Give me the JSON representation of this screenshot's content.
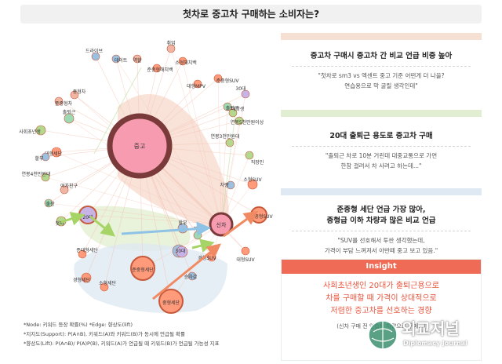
{
  "title": "첫차로 중고차 구매하는 소비자는?",
  "network": {
    "hub_nodes": [
      {
        "label": "중고",
        "color": "#f79bb0"
      },
      {
        "label": "신차",
        "color": "#f79bb0"
      }
    ],
    "nodes": [
      {
        "label": "취업",
        "color": "#f1b5a3"
      },
      {
        "label": "드라이브",
        "color": "#9dbfe0"
      },
      {
        "label": "데이트",
        "color": "#9dbfe0"
      },
      {
        "label": "역할",
        "color": "#f1b5a3"
      },
      {
        "label": "소형해치백",
        "color": "#ff9a7a"
      },
      {
        "label": "준중형해치백",
        "color": "#ff9a7a"
      },
      {
        "label": "준중형SUV",
        "color": "#ff9a7a"
      },
      {
        "label": "대형MPV",
        "color": "#ff9a7a"
      },
      {
        "label": "중형차",
        "color": "#f1b5a3"
      },
      {
        "label": "준중형차",
        "color": "#f1b5a3"
      },
      {
        "label": "출퇴근",
        "color": "#9dd9b2"
      },
      {
        "label": "사회초년생",
        "color": "#b4d88e"
      },
      {
        "label": "대형세단",
        "color": "#ff9a7a"
      },
      {
        "label": "할부",
        "color": "#9dbfe0"
      },
      {
        "label": "연봉4천만원대",
        "color": "#b4d88e"
      },
      {
        "label": "여자친구",
        "color": "#f1b5a3"
      },
      {
        "label": "출장",
        "color": "#9dd9b2"
      },
      {
        "label": "첫차",
        "color": "#b4d88e"
      },
      {
        "label": "20대",
        "color": "#c7b3e6"
      },
      {
        "label": "경형세단",
        "color": "#ff9a7a"
      },
      {
        "label": "준중형세단",
        "color": "#ff9a7a"
      },
      {
        "label": "소형세단",
        "color": "#ff9a7a"
      },
      {
        "label": "중형세단",
        "color": "#ff9a7a"
      },
      {
        "label": "준대형세단",
        "color": "#ff9a7a"
      },
      {
        "label": "출퇴근",
        "color": "#9dd9b2"
      },
      {
        "label": "할부",
        "color": "#9dbfe0"
      },
      {
        "label": "회사",
        "color": "#9dbfe0"
      },
      {
        "label": "30대",
        "color": "#c7b3e6"
      },
      {
        "label": "경형SUV",
        "color": "#ff9a7a"
      },
      {
        "label": "승차감",
        "color": "#9dbfe0"
      },
      {
        "label": "대형SUV",
        "color": "#ff9a7a"
      },
      {
        "label": "중형SUV",
        "color": "#ff9a7a"
      },
      {
        "label": "소형SUV",
        "color": "#ff9a7a"
      },
      {
        "label": "차량",
        "color": "#9dbfe0"
      },
      {
        "label": "직장인",
        "color": "#b4d88e"
      },
      {
        "label": "연봉3천만원대",
        "color": "#b4d88e"
      },
      {
        "label": "연봉5천만원이상",
        "color": "#b4d88e"
      },
      {
        "label": "대학생",
        "color": "#b4d88e"
      },
      {
        "label": "30대",
        "color": "#c7b3e6"
      },
      {
        "label": "차로",
        "color": "#9dd9b2"
      }
    ]
  },
  "notes": [
    "*Node: 키워드 등장 확률(%) *Edge: 향상도(lift)",
    "*지지도(Support): P(A∩B), 키워드(A)와 키워드(B)가 동시에 언급될 확률",
    "*향상도(Lift): P(A∩B)/ P(A)P(B), 키워드(A)가 언급될 때 키워드(B)가 언급될 가능성 지표"
  ],
  "cards": [
    {
      "title": "중고차 구매시 중고차 간 비교 언급 비중 높아",
      "quote": "\"첫차로 sm3 vs 엑센트 중고 기준 어떤게 더 나을?\n연습용으로 막 굴릴 생각인데\"",
      "accent": "#f6dfd3"
    },
    {
      "title": "20대 출퇴근 용도로 중고차 구매",
      "quote": "\"출퇴근 차로 10분 거린데 대중교통으로 가면\n한참 걸려서 차 사려고 하는데...\"",
      "accent": "#e2eed1"
    },
    {
      "title": "준중형 세단 언급 가장 많아,\n중형급 이하 차량과 많은 비교 언급",
      "quote": "\"SUV를 선호해서 투싼 생각했는데,\n가격이 부담 느껴져서 아반떼 중고 보고 있음.\"",
      "accent": "#dfe9f3"
    }
  ],
  "insight": {
    "label": "Insight",
    "body": "사회초년생인 20대가 출퇴근용으로\n차를 구매할 때 가격이 상대적으로\n저렴한 중고차를 선호하는 경향",
    "footnote": "(신차 구매 전 연습용 차량으로 구매...)",
    "color": "#ef6b55"
  },
  "watermark": {
    "name": "외교저널",
    "sub": "Diplomacy Journal"
  }
}
